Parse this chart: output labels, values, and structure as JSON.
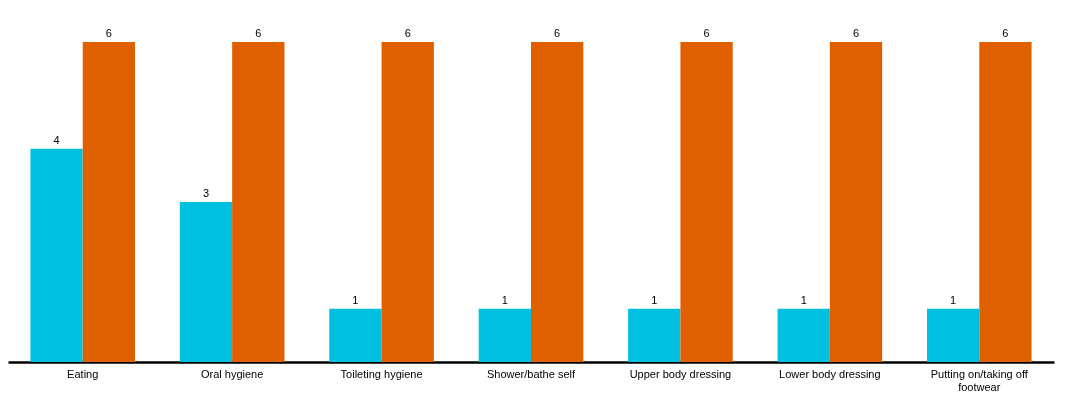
{
  "chart_data": {
    "type": "bar",
    "categories": [
      "Eating",
      "Oral hygiene",
      "Toileting hygiene",
      "Shower/bathe self",
      "Upper body dressing",
      "Lower body dressing",
      "Putting on/taking off footwear"
    ],
    "series": [
      {
        "color": "#00c0e0",
        "values": [
          4,
          3,
          1,
          1,
          1,
          1,
          1
        ]
      },
      {
        "color": "#e06000",
        "values": [
          6,
          6,
          6,
          6,
          6,
          6,
          6
        ]
      }
    ],
    "data_labels": true,
    "grid": false,
    "tick_labels": "x"
  }
}
